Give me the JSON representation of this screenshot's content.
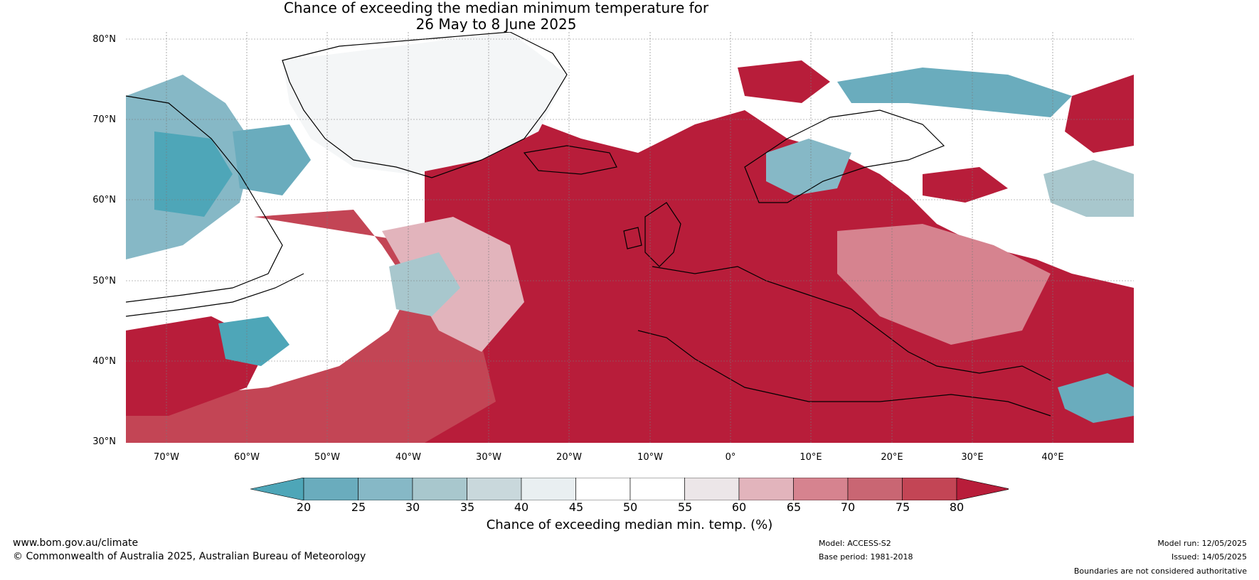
{
  "title": {
    "line1": "Chance of exceeding the median minimum temperature for",
    "line2": "26 May to 8 June 2025"
  },
  "lat_labels": [
    "80°N",
    "70°N",
    "60°N",
    "50°N",
    "40°N",
    "30°N"
  ],
  "lon_labels": [
    "70°W",
    "60°W",
    "50°W",
    "40°W",
    "30°W",
    "20°W",
    "10°W",
    "0°",
    "10°E",
    "20°E",
    "30°E",
    "40°E"
  ],
  "colorbar": {
    "ticks": [
      "20",
      "25",
      "30",
      "35",
      "40",
      "45",
      "50",
      "55",
      "60",
      "65",
      "70",
      "75",
      "80"
    ],
    "colors": [
      "#4ea6b8",
      "#6aacbd",
      "#86b8c6",
      "#a8c7cd",
      "#c9d8dc",
      "#e9eff1",
      "#ffffff",
      "#ffffff",
      "#ece6e8",
      "#e2b4bc",
      "#d6838f",
      "#c96673",
      "#c34555",
      "#b81d3a"
    ],
    "label": "Chance of exceeding median min. temp. (%)"
  },
  "footer": {
    "url": "www.bom.gov.au/climate",
    "copyright": "© Commonwealth of Australia 2025, Australian Bureau of Meteorology",
    "model": "Model: ACCESS-S2",
    "base_period": "Base period: 1981-2018",
    "model_run": "Model run: 12/05/2025",
    "issued": "Issued: 14/05/2025",
    "disclaimer": "Boundaries are not considered authoritative"
  }
}
